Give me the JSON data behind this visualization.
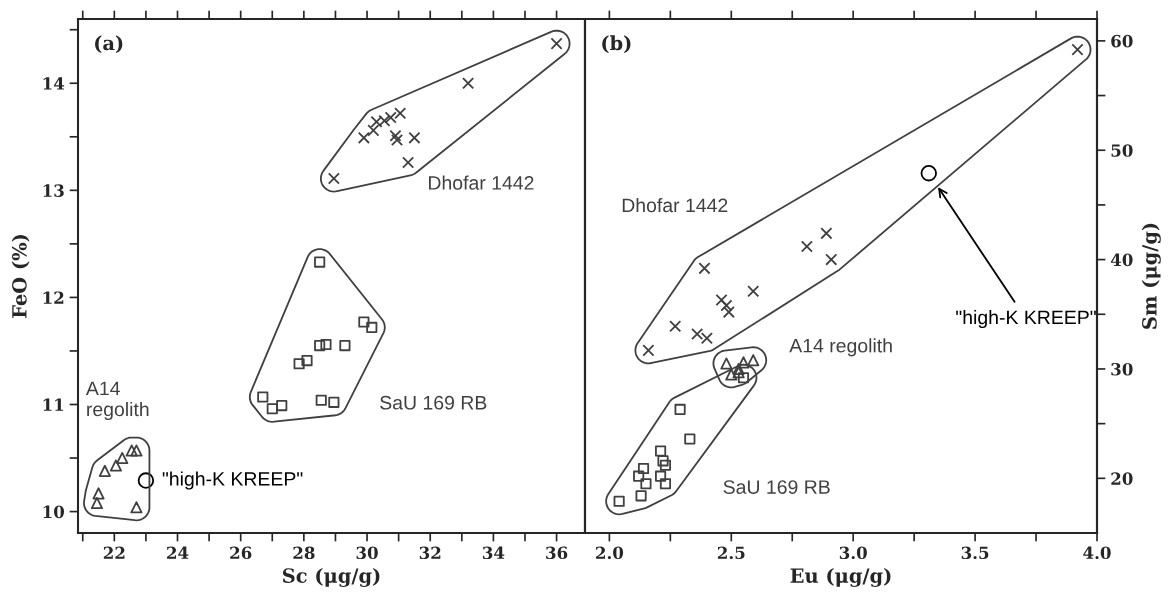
{
  "chart_data": [
    {
      "type": "scatter",
      "xlabel": "Sc (μg/g)",
      "ylabel": "FeO (%)",
      "annotations": [
        "(a)"
      ],
      "grid": false,
      "legend": false,
      "xlim": [
        20.85,
        36.9
      ],
      "ylim": [
        9.8,
        14.6
      ],
      "xticks": [
        {
          "value": 21,
          "label": null
        },
        22,
        {
          "value": 23,
          "label": null
        },
        24,
        {
          "value": 25,
          "label": null
        },
        26,
        {
          "value": 27,
          "label": null
        },
        28,
        {
          "value": 29,
          "label": null
        },
        30,
        {
          "value": 31,
          "label": null
        },
        32,
        {
          "value": 33,
          "label": null
        },
        34,
        {
          "value": 35,
          "label": null
        },
        36
      ],
      "yticks": [
        10,
        {
          "value": 10.5,
          "label": null
        },
        11,
        {
          "value": 11.5,
          "label": null
        },
        12,
        {
          "value": 12.5,
          "label": null
        },
        13,
        {
          "value": 13.5,
          "label": null
        },
        14,
        {
          "value": 14.5,
          "label": null
        }
      ],
      "series": [
        {
          "name": "Dhofar 1442",
          "color": "#404040",
          "marker": "cross",
          "x": [
            36.0,
            33.2,
            31.05,
            30.75,
            30.55,
            30.3,
            30.2,
            29.9,
            30.9,
            30.95,
            31.5,
            31.3,
            28.95
          ],
          "values": [
            14.37,
            14.0,
            13.72,
            13.68,
            13.65,
            13.64,
            13.56,
            13.49,
            13.51,
            13.47,
            13.49,
            13.26,
            13.11
          ]
        },
        {
          "name": "SaU 169 RB",
          "color": "#404040",
          "marker": "square",
          "x": [
            28.5,
            29.9,
            30.15,
            28.5,
            28.7,
            29.3,
            27.85,
            28.1,
            26.7,
            27.0,
            27.3,
            28.55,
            28.95
          ],
          "values": [
            12.33,
            11.77,
            11.72,
            11.55,
            11.56,
            11.55,
            11.38,
            11.41,
            11.07,
            10.96,
            10.99,
            11.04,
            11.02
          ]
        },
        {
          "name": "A14\nregolith",
          "color": "#404040",
          "marker": "triangle",
          "x": [
            22.55,
            22.7,
            22.25,
            22.05,
            21.7,
            21.5,
            21.45,
            22.7
          ],
          "values": [
            10.57,
            10.57,
            10.5,
            10.43,
            10.38,
            10.17,
            10.08,
            10.04
          ]
        },
        {
          "name": "\"high-K KREEP\"",
          "color": "#000000",
          "marker": "circle",
          "x": [
            23.0
          ],
          "values": [
            10.29
          ]
        }
      ]
    },
    {
      "type": "scatter",
      "xlabel": "Eu (μg/g)",
      "y2label": "Sm (μg/g)",
      "annotations": [
        "(b)"
      ],
      "grid": false,
      "legend": false,
      "xlim": [
        1.9,
        4.0
      ],
      "y2lim": [
        15,
        62
      ],
      "xticks": [
        {
          "value": 2.0,
          "label": "2.0"
        },
        {
          "value": 2.25,
          "label": null
        },
        {
          "value": 2.5,
          "label": "2.5"
        },
        {
          "value": 2.75,
          "label": null
        },
        {
          "value": 3.0,
          "label": "3.0"
        },
        {
          "value": 3.25,
          "label": null
        },
        {
          "value": 3.5,
          "label": "3.5"
        },
        {
          "value": 3.75,
          "label": null
        },
        {
          "value": 4.0,
          "label": "4.0"
        }
      ],
      "y2ticks": [
        20,
        {
          "value": 25,
          "label": null
        },
        30,
        {
          "value": 35,
          "label": null
        },
        40,
        {
          "value": 45,
          "label": null
        },
        50,
        {
          "value": 55,
          "label": null
        },
        60
      ],
      "series": [
        {
          "name": "Dhofar 1442",
          "color": "#404040",
          "marker": "cross",
          "axis": "y2",
          "x": [
            3.92,
            2.89,
            2.81,
            2.91,
            2.39,
            2.59,
            2.46,
            2.48,
            2.49,
            2.27,
            2.36,
            2.4,
            2.16
          ],
          "values": [
            59.2,
            42.4,
            41.2,
            40.0,
            39.2,
            37.1,
            36.3,
            35.8,
            35.2,
            33.9,
            33.2,
            32.8,
            31.7
          ]
        },
        {
          "name": "A14 regolith",
          "color": "#404040",
          "marker": "triangle",
          "axis": "y2",
          "x": [
            2.48,
            2.55,
            2.59,
            2.5,
            2.53,
            2.53
          ],
          "values": [
            30.5,
            30.6,
            30.8,
            29.5,
            29.7,
            30.0
          ]
        },
        {
          "name": "SaU 169 RB",
          "color": "#404040",
          "marker": "square",
          "axis": "y2",
          "x": [
            2.55,
            2.29,
            2.33,
            2.21,
            2.22,
            2.14,
            2.12,
            2.23,
            2.21,
            2.15,
            2.23,
            2.13,
            2.04
          ],
          "values": [
            29.2,
            26.3,
            23.6,
            22.5,
            21.6,
            20.9,
            20.2,
            21.2,
            20.2,
            19.5,
            19.5,
            18.4,
            17.9
          ]
        },
        {
          "name": "\"high-K KREEP\"",
          "color": "#000000",
          "marker": "circle",
          "axis": "y2",
          "x": [
            3.31
          ],
          "values": [
            47.9
          ]
        }
      ]
    }
  ]
}
